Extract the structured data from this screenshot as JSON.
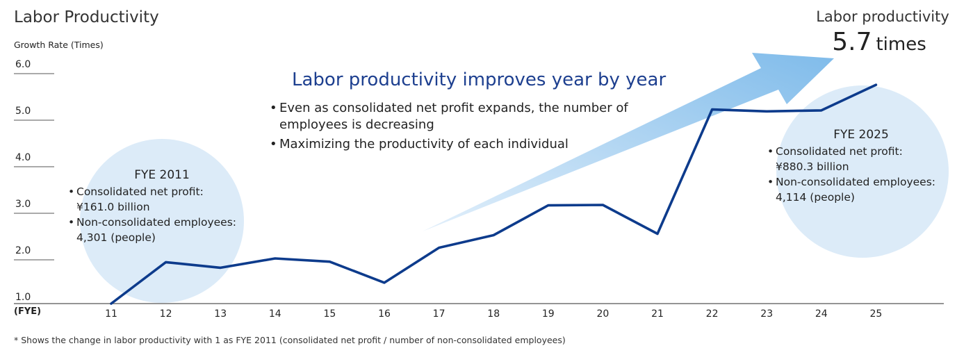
{
  "header": {
    "title": "Labor Productivity",
    "ylabel": "Growth Rate (Times)",
    "xlabel": "(FYE)"
  },
  "highlight": {
    "title": "Labor productivity improves year by year",
    "bullets": [
      "Even as consolidated net profit expands, the number of",
      "employees is decreasing",
      "Maximizing the productivity of each individual"
    ]
  },
  "callouts": {
    "fye2011": {
      "heading": "FYE 2011",
      "line1": "Consolidated net profit:",
      "line2": "¥161.0 billion",
      "line3": "Non-consolidated employees:",
      "line4": "4,301 (people)"
    },
    "fye2025": {
      "heading": "FYE 2025",
      "line1": "Consolidated net profit:",
      "line2": "¥880.3 billion",
      "line3": "Non-consolidated employees:",
      "line4": "4,114 (people)"
    }
  },
  "result": {
    "label": "Labor productivity",
    "value": "5.7",
    "unit": "times"
  },
  "footnote": "* Shows the change in labor productivity with 1 as FYE 2011 (consolidated net profit /  number of non-consolidated employees)",
  "colors": {
    "line": "#0d3b8c",
    "bubble": "#d6e8f7",
    "arrow_start": "#e3f0fb",
    "arrow_end": "#7fbbea",
    "highlight_text": "#1d3f8f"
  },
  "chart_data": {
    "type": "line",
    "x": [
      "11",
      "12",
      "13",
      "14",
      "15",
      "16",
      "17",
      "18",
      "19",
      "20",
      "21",
      "22",
      "23",
      "24",
      "25"
    ],
    "series": [
      {
        "values": [
          1.0,
          1.89,
          1.77,
          1.97,
          1.9,
          1.45,
          2.2,
          2.47,
          3.11,
          3.12,
          2.5,
          5.17,
          5.13,
          5.15,
          5.7
        ]
      }
    ],
    "yticks": [
      "1.0",
      "2.0",
      "3.0",
      "4.0",
      "5.0",
      "6.0"
    ],
    "ylim": [
      1.0,
      6.0
    ],
    "grid": false
  }
}
